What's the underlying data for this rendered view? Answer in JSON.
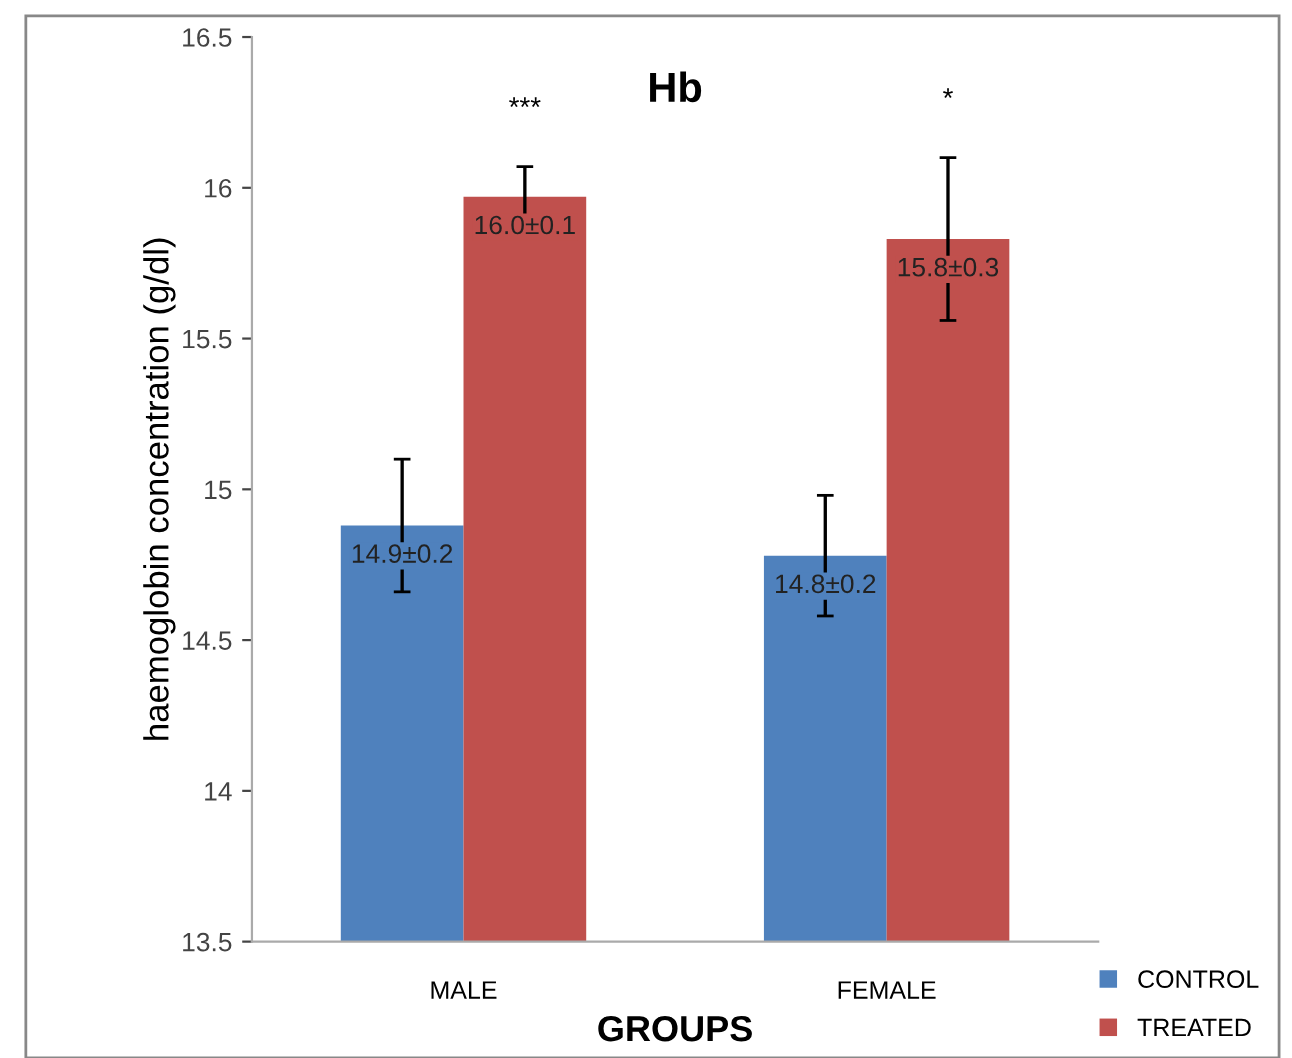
{
  "chart_data": {
    "type": "bar",
    "title": "Hb",
    "xlabel": "GROUPS",
    "ylabel": "haemoglobin concentration (g/dl)",
    "categories": [
      "MALE",
      "FEMALE"
    ],
    "series": [
      {
        "name": "CONTROL",
        "color": "#4f81bd",
        "values": [
          14.88,
          14.78
        ],
        "errors": [
          0.22,
          0.2
        ],
        "value_labels": [
          "14.9±0.2",
          "14.8±0.2"
        ]
      },
      {
        "name": "TREATED",
        "color": "#c0504d",
        "values": [
          15.97,
          15.83
        ],
        "errors": [
          0.1,
          0.27
        ],
        "value_labels": [
          "16.0±0.1",
          "15.8±0.3"
        ]
      }
    ],
    "annotations": [
      "***",
      "*"
    ],
    "ylim": [
      13.5,
      16.5
    ],
    "yticks": [
      13.5,
      14,
      14.5,
      15,
      15.5,
      16,
      16.5
    ],
    "grid": false,
    "legend": "bottom right"
  }
}
